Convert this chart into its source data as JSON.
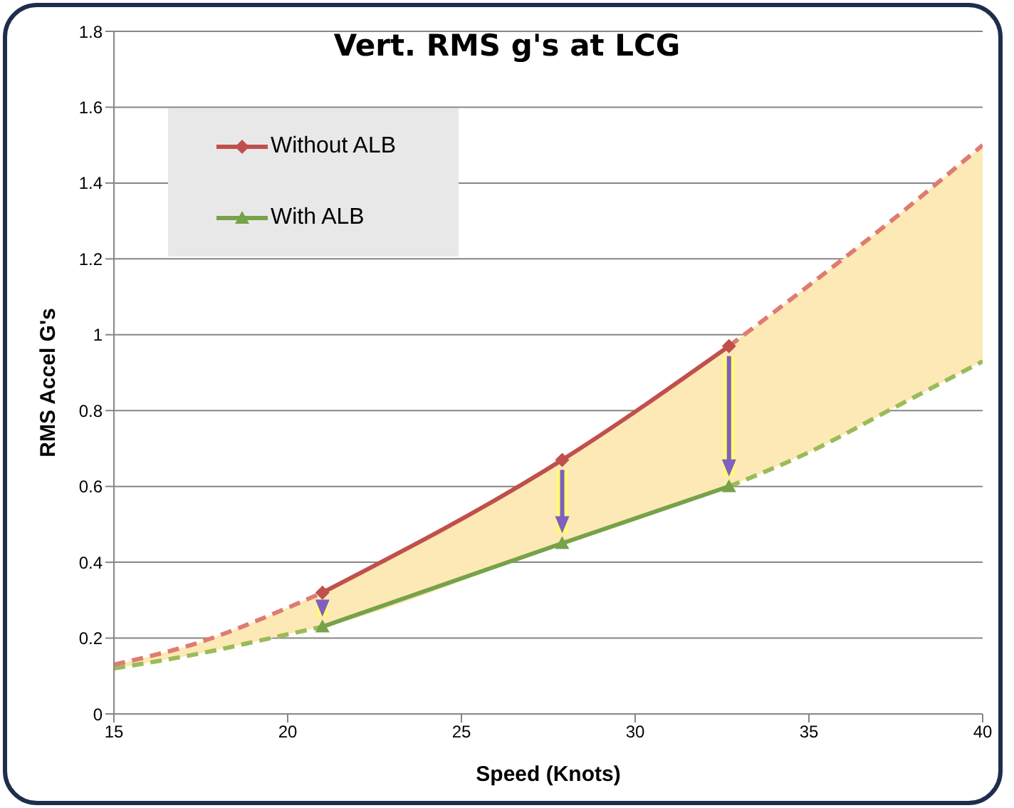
{
  "chart_data": {
    "type": "line",
    "title": "Vert. RMS g's at LCG",
    "xlabel": "Speed (Knots)",
    "ylabel": "RMS Accel G's",
    "xlim": [
      15,
      40
    ],
    "xticks": [
      15,
      20,
      25,
      30,
      35,
      40
    ],
    "ylim": [
      0,
      1.8
    ],
    "yticks": [
      0,
      0.2,
      0.4,
      0.6,
      0.8,
      1,
      1.2,
      1.4,
      1.6,
      1.8
    ],
    "grid": "y",
    "legend": "top left",
    "series": [
      {
        "type": "area",
        "color": "#fde9b5",
        "x": [
          15,
          17.5,
          20,
          21,
          27.9,
          32.7,
          35,
          37.5,
          40
        ],
        "values": [
          null,
          null,
          null,
          null,
          null,
          null,
          null,
          null,
          null
        ],
        "upper": [
          0.13,
          0.19,
          0.28,
          0.32,
          0.67,
          0.97,
          1.13,
          1.31,
          1.5
        ],
        "lower": [
          0.12,
          0.16,
          0.21,
          0.23,
          0.45,
          0.6,
          0.69,
          0.81,
          0.93
        ]
      },
      {
        "color": "#9bbb59",
        "line_style": "dashed",
        "marker": "none",
        "x": [
          15,
          17.5,
          20,
          21,
          27.9,
          32.7,
          35,
          37.5,
          40
        ],
        "values": [
          0.12,
          0.16,
          0.21,
          0.23,
          null,
          0.6,
          0.69,
          0.81,
          0.93
        ]
      },
      {
        "color": "#de7c72",
        "line_style": "dashed",
        "marker": "none",
        "x": [
          15,
          17.5,
          20,
          21
        ],
        "values": [
          0.13,
          0.19,
          0.28,
          0.32
        ]
      },
      {
        "color": "#de7c72",
        "line_style": "dashed",
        "marker": "none",
        "x": [
          32.7,
          35,
          37.5,
          40
        ],
        "values": [
          0.97,
          1.13,
          1.31,
          1.5
        ]
      },
      {
        "name": "With ALB",
        "color": "#77a249",
        "line_style": "solid",
        "marker": "triangle",
        "x": [
          21,
          27.9,
          32.7
        ],
        "values": [
          0.23,
          0.45,
          0.6
        ]
      },
      {
        "name": "Without ALB",
        "color": "#c0504d",
        "line_style": "solid",
        "marker": "diamond",
        "x": [
          21,
          27.9,
          32.7
        ],
        "values": [
          0.32,
          0.67,
          0.97
        ]
      }
    ]
  }
}
